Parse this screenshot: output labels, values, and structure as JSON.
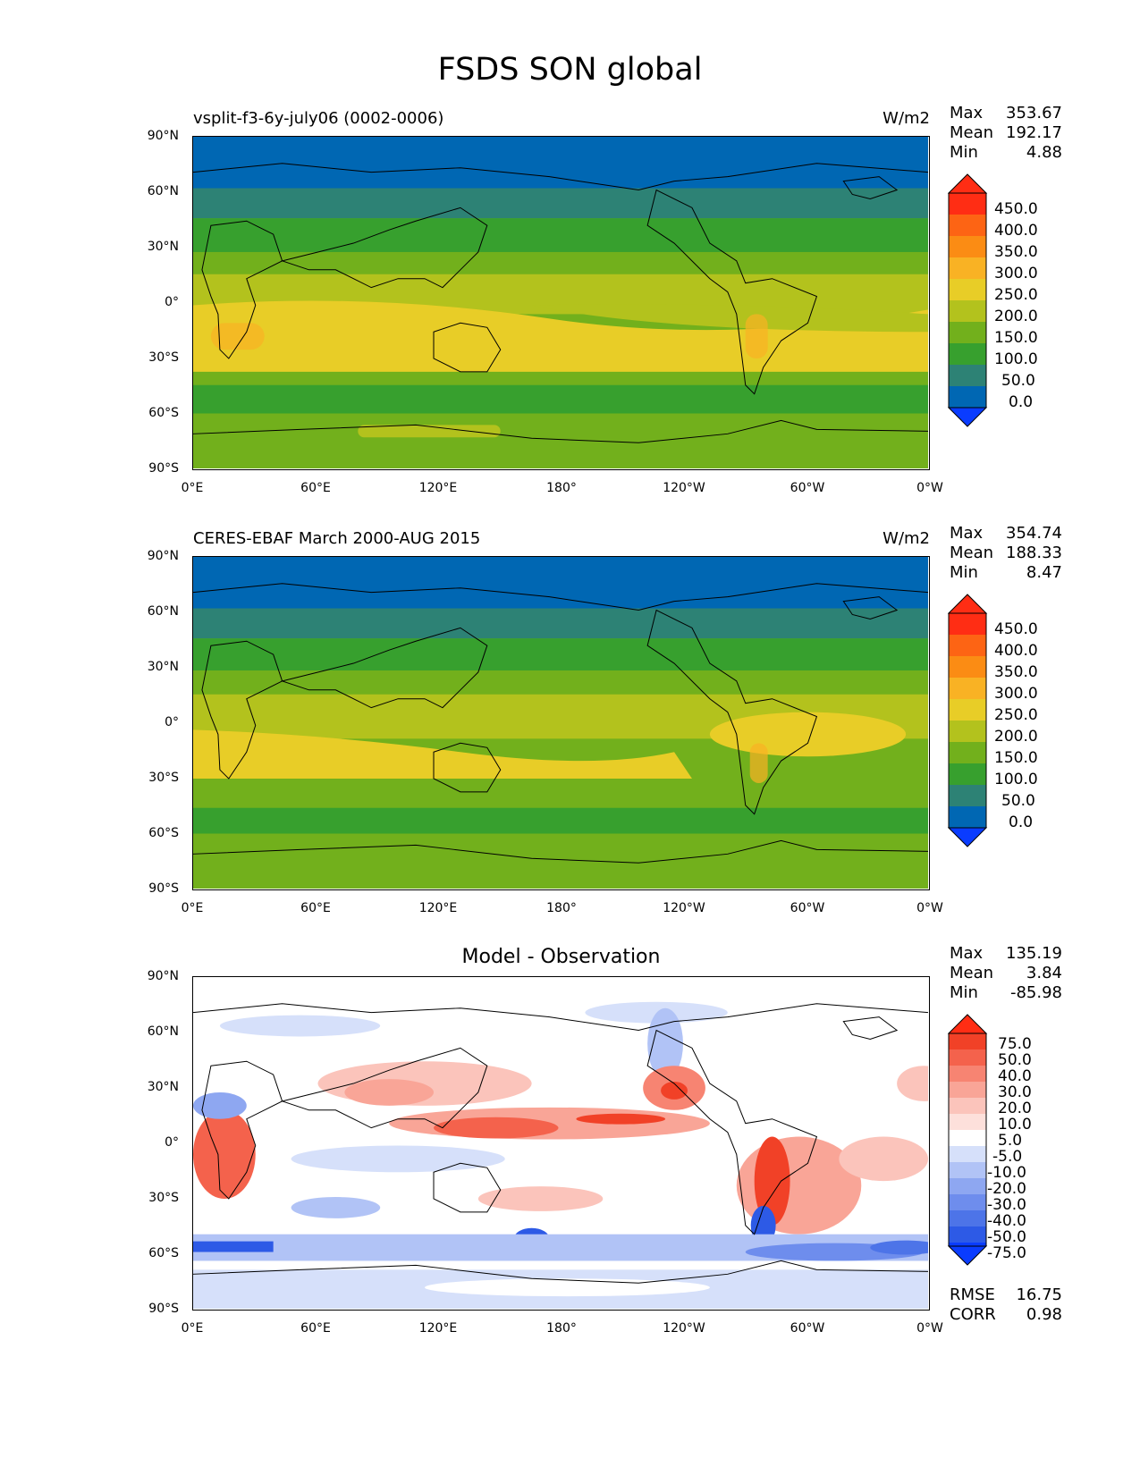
{
  "title": "FSDS SON global",
  "panels": [
    {
      "subtitle": "vsplit-f3-6y-july06 (0002-0006)",
      "units": "W/m2",
      "stats": {
        "max_label": "Max",
        "max": "353.67",
        "mean_label": "Mean",
        "mean": "192.17",
        "min_label": "Min",
        "min": "4.88"
      },
      "colorbar_labels": [
        "450.0",
        "400.0",
        "350.0",
        "300.0",
        "250.0",
        "200.0",
        "150.0",
        "100.0",
        "50.0",
        "0.0"
      ]
    },
    {
      "subtitle": "CERES-EBAF March 2000-AUG 2015",
      "units": "W/m2",
      "stats": {
        "max_label": "Max",
        "max": "354.74",
        "mean_label": "Mean",
        "mean": "188.33",
        "min_label": "Min",
        "min": "8.47"
      },
      "colorbar_labels": [
        "450.0",
        "400.0",
        "350.0",
        "300.0",
        "250.0",
        "200.0",
        "150.0",
        "100.0",
        "50.0",
        "0.0"
      ]
    },
    {
      "center_title": "Model - Observation",
      "stats": {
        "max_label": "Max",
        "max": "135.19",
        "mean_label": "Mean",
        "mean": "3.84",
        "min_label": "Min",
        "min": "-85.98"
      },
      "colorbar_labels": [
        "75.0",
        "50.0",
        "40.0",
        "30.0",
        "20.0",
        "10.0",
        "5.0",
        "-5.0",
        "-10.0",
        "-20.0",
        "-30.0",
        "-40.0",
        "-50.0",
        "-75.0"
      ],
      "rmse_label": "RMSE",
      "rmse": "16.75",
      "corr_label": "CORR",
      "corr": "0.98"
    }
  ],
  "axes": {
    "y_ticks": [
      "90°N",
      "60°N",
      "30°N",
      "0°",
      "30°S",
      "60°S",
      "90°S"
    ],
    "x_ticks": [
      "0°E",
      "60°E",
      "120°E",
      "180°",
      "120°W",
      "60°W",
      "0°W"
    ]
  },
  "chart_data": [
    {
      "type": "heatmap",
      "title": "vsplit-f3-6y-july06 (0002-0006)",
      "units": "W/m2",
      "colorbar_levels": [
        0,
        50,
        100,
        150,
        200,
        250,
        300,
        350,
        400,
        450
      ],
      "colors": [
        "#0a3cff",
        "#0067b3",
        "#2d8275",
        "#37a02e",
        "#72b01c",
        "#b3c21d",
        "#e8cd27",
        "#f9b224",
        "#fb8c14",
        "#fd6414",
        "#ff2d14"
      ],
      "zonal_profile_latitudes": [
        90,
        75,
        60,
        45,
        30,
        15,
        0,
        -15,
        -30,
        -45,
        -60,
        -75,
        -90
      ],
      "zonal_profile_values": [
        50,
        60,
        100,
        150,
        210,
        260,
        240,
        270,
        240,
        180,
        120,
        160,
        150
      ],
      "max": 353.67,
      "mean": 192.17,
      "min": 4.88
    },
    {
      "type": "heatmap",
      "title": "CERES-EBAF March 2000-AUG 2015",
      "units": "W/m2",
      "colorbar_levels": [
        0,
        50,
        100,
        150,
        200,
        250,
        300,
        350,
        400,
        450
      ],
      "colors": [
        "#0a3cff",
        "#0067b3",
        "#2d8275",
        "#37a02e",
        "#72b01c",
        "#b3c21d",
        "#e8cd27",
        "#f9b224",
        "#fb8c14",
        "#fd6414",
        "#ff2d14"
      ],
      "zonal_profile_latitudes": [
        90,
        75,
        60,
        45,
        30,
        15,
        0,
        -15,
        -30,
        -45,
        -60,
        -75,
        -90
      ],
      "zonal_profile_values": [
        50,
        60,
        100,
        150,
        200,
        220,
        230,
        260,
        240,
        180,
        120,
        160,
        150
      ],
      "max": 354.74,
      "mean": 188.33,
      "min": 8.47
    },
    {
      "type": "heatmap",
      "title": "Model - Observation",
      "colorbar_levels": [
        -75,
        -50,
        -40,
        -30,
        -20,
        -10,
        -5,
        5,
        10,
        20,
        30,
        40,
        50,
        75
      ],
      "colors": [
        "#0a3cff",
        "#2d5ae6",
        "#4d74e8",
        "#6e8ded",
        "#8ea7f1",
        "#b1c3f6",
        "#d6e0fa",
        "#ffffff",
        "#fde0db",
        "#fbc4bb",
        "#f9a597",
        "#f78472",
        "#f4624c",
        "#f14127",
        "#ff2d14"
      ],
      "max": 135.19,
      "mean": 3.84,
      "min": -85.98,
      "rmse": 16.75,
      "corr": 0.98
    }
  ]
}
